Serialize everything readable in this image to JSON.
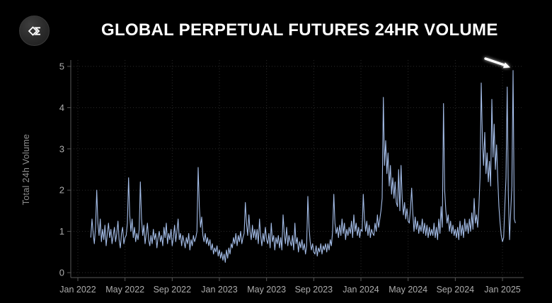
{
  "header": {
    "title": "GLOBAL PERPETUAL FUTURES 24HR VOLUME",
    "logo_icon": "diamond-sigma-logo"
  },
  "colors": {
    "background": "#000000",
    "line": "#a4bde8",
    "grid": "rgba(255,255,255,0.17)",
    "axis": "#585858",
    "tick_label": "#adadad",
    "axis_title": "#8f8f8f",
    "title": "#ffffff",
    "arrow": "#ffffff"
  },
  "chart_data": {
    "type": "line",
    "title": "GLOBAL PERPETUAL FUTURES 24HR VOLUME",
    "xlabel": "",
    "ylabel": "Total 24h Volume",
    "x_tick_labels": [
      "Jan 2022",
      "May 2022",
      "Sep 2022",
      "Jan 2023",
      "May 2023",
      "Sep 2023",
      "Jan 2024",
      "May 2024",
      "Sep 2024",
      "Jan 2025"
    ],
    "y_ticks": [
      0,
      1,
      2,
      3,
      4,
      5
    ],
    "ylim": [
      0,
      5
    ],
    "grid": true,
    "legend": false,
    "x_unit": "months since Jan 2022",
    "x_start": 1.1,
    "x_step": 0.1,
    "values": [
      0.85,
      1.3,
      0.95,
      0.7,
      1.1,
      2.0,
      1.2,
      0.9,
      1.3,
      0.75,
      1.05,
      0.8,
      1.15,
      0.65,
      0.95,
      1.2,
      0.85,
      1.05,
      0.7,
      0.9,
      1.1,
      0.75,
      0.95,
      1.25,
      0.8,
      0.6,
      0.95,
      1.1,
      0.7,
      0.85,
      0.9,
      1.2,
      2.3,
      1.4,
      1.0,
      1.3,
      0.85,
      1.1,
      0.75,
      0.95,
      0.8,
      1.05,
      2.2,
      1.3,
      0.9,
      1.15,
      0.7,
      0.95,
      1.2,
      0.8,
      0.65,
      0.9,
      0.7,
      1.05,
      0.8,
      0.95,
      0.6,
      0.85,
      1.0,
      0.75,
      0.9,
      0.65,
      1.1,
      0.85,
      1.2,
      0.7,
      0.95,
      0.8,
      1.05,
      0.65,
      0.85,
      1.15,
      0.75,
      1.0,
      1.3,
      0.8,
      0.95,
      0.65,
      0.9,
      0.75,
      0.6,
      0.85,
      0.7,
      0.95,
      0.55,
      0.8,
      0.65,
      0.9,
      0.75,
      0.85,
      1.0,
      2.55,
      1.6,
      1.1,
      1.35,
      0.9,
      0.75,
      0.95,
      0.7,
      0.85,
      0.65,
      0.8,
      0.55,
      0.7,
      0.45,
      0.6,
      0.5,
      0.65,
      0.4,
      0.55,
      0.35,
      0.5,
      0.3,
      0.45,
      0.25,
      0.55,
      0.35,
      0.6,
      0.45,
      0.7,
      0.6,
      0.85,
      0.7,
      0.95,
      0.65,
      0.9,
      0.75,
      1.0,
      0.7,
      0.85,
      0.95,
      1.7,
      1.2,
      0.9,
      1.4,
      1.0,
      0.8,
      1.15,
      0.85,
      1.05,
      0.8,
      1.05,
      0.7,
      1.3,
      0.9,
      0.65,
      0.95,
      0.75,
      1.1,
      0.8,
      0.7,
      0.95,
      0.6,
      1.2,
      0.75,
      0.9,
      0.55,
      0.85,
      0.7,
      0.9,
      0.6,
      0.85,
      0.55,
      1.4,
      0.95,
      0.7,
      1.1,
      0.65,
      0.9,
      0.75,
      0.65,
      0.9,
      0.55,
      1.2,
      0.7,
      0.85,
      0.5,
      0.75,
      0.6,
      0.8,
      0.55,
      0.7,
      0.45,
      0.65,
      1.85,
      1.1,
      0.75,
      0.55,
      0.7,
      0.5,
      0.45,
      0.65,
      0.4,
      0.6,
      0.5,
      0.7,
      0.45,
      0.65,
      0.55,
      0.7,
      0.5,
      0.7,
      0.55,
      0.8,
      0.65,
      1.0,
      1.9,
      1.2,
      0.95,
      1.1,
      0.85,
      1.15,
      0.9,
      1.3,
      0.95,
      1.2,
      0.8,
      1.05,
      0.9,
      1.1,
      0.95,
      1.25,
      0.85,
      1.4,
      1.0,
      1.2,
      0.9,
      1.1,
      0.85,
      1.05,
      1.0,
      1.9,
      1.3,
      1.0,
      1.25,
      0.9,
      1.15,
      0.85,
      1.05,
      0.95,
      0.9,
      1.2,
      1.0,
      1.4,
      1.1,
      1.3,
      1.5,
      1.8,
      4.25,
      2.6,
      3.2,
      2.4,
      2.9,
      2.1,
      2.6,
      1.9,
      2.3,
      1.8,
      2.2,
      1.7,
      1.6,
      2.5,
      1.5,
      2.6,
      1.8,
      1.4,
      1.7,
      1.3,
      1.55,
      1.25,
      1.2,
      1.55,
      2.05,
      1.45,
      1.0,
      1.35,
      1.05,
      1.25,
      0.95,
      1.15,
      1.0,
      1.3,
      0.95,
      1.2,
      0.9,
      1.15,
      0.85,
      1.1,
      0.9,
      1.05,
      0.9,
      1.2,
      0.85,
      1.1,
      0.8,
      1.3,
      0.95,
      1.6,
      1.1,
      4.1,
      2.0,
      1.5,
      1.2,
      1.4,
      1.0,
      1.25,
      0.95,
      1.15,
      0.9,
      1.05,
      0.85,
      1.1,
      0.8,
      1.25,
      0.9,
      1.15,
      0.85,
      1.3,
      1.0,
      1.2,
      0.95,
      1.3,
      1.0,
      1.45,
      1.05,
      1.8,
      1.2,
      1.4,
      1.1,
      1.6,
      2.3,
      4.6,
      3.2,
      2.6,
      3.4,
      2.4,
      2.9,
      2.2,
      2.7,
      2.1,
      4.2,
      2.8,
      3.6,
      2.5,
      3.1,
      2.3,
      1.6,
      1.2,
      0.9,
      0.75,
      0.85,
      1.6,
      2.3,
      4.5,
      1.9,
      0.8,
      1.5,
      2.1,
      4.9,
      1.3,
      1.2
    ],
    "annotations": [
      {
        "type": "arrow",
        "target": "record spike ~4.9 in late Jan 2025",
        "text": ""
      }
    ]
  }
}
